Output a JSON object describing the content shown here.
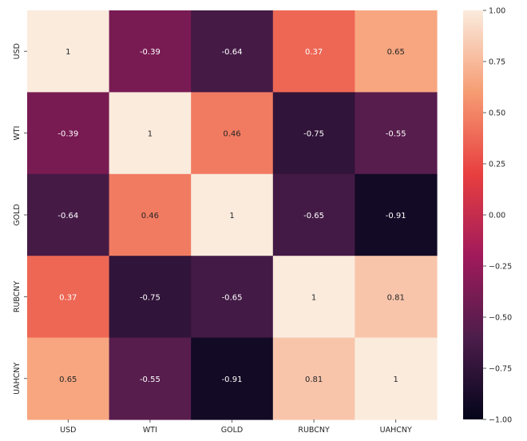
{
  "chart_data": {
    "type": "heatmap",
    "rows": [
      "USD",
      "WTI",
      "GOLD",
      "RUBCNY",
      "UAHCNY"
    ],
    "columns": [
      "USD",
      "WTI",
      "GOLD",
      "RUBCNY",
      "UAHCNY"
    ],
    "values": [
      [
        1,
        -0.39,
        -0.64,
        0.37,
        0.65
      ],
      [
        -0.39,
        1,
        0.46,
        -0.75,
        -0.55
      ],
      [
        -0.64,
        0.46,
        1,
        -0.65,
        -0.91
      ],
      [
        0.37,
        -0.75,
        -0.65,
        1,
        0.81
      ],
      [
        0.65,
        -0.55,
        -0.91,
        0.81,
        1
      ]
    ],
    "cell_labels": [
      [
        "1",
        "-0.39",
        "-0.64",
        "0.37",
        "0.65"
      ],
      [
        "-0.39",
        "1",
        "0.46",
        "-0.75",
        "-0.55"
      ],
      [
        "-0.64",
        "0.46",
        "1",
        "-0.65",
        "-0.91"
      ],
      [
        "0.37",
        "-0.75",
        "-0.65",
        "1",
        "0.81"
      ],
      [
        "0.65",
        "-0.55",
        "-0.91",
        "0.81",
        "1"
      ]
    ],
    "color_scale": {
      "colormap": "rocket",
      "range": [
        -1,
        1
      ],
      "ticks": [
        -1,
        -0.75,
        -0.5,
        -0.25,
        0,
        0.25,
        0.5,
        0.75,
        1
      ],
      "tick_labels": [
        "−1.00",
        "−0.75",
        "−0.50",
        "−0.25",
        "0.00",
        "0.25",
        "0.50",
        "0.75",
        "1.00"
      ],
      "stops": [
        "#03051a",
        "#4c1d4b",
        "#a11a5b",
        "#e83f3f",
        "#f69c73",
        "#faebdd"
      ],
      "legend_position": "right"
    },
    "grid": false
  }
}
